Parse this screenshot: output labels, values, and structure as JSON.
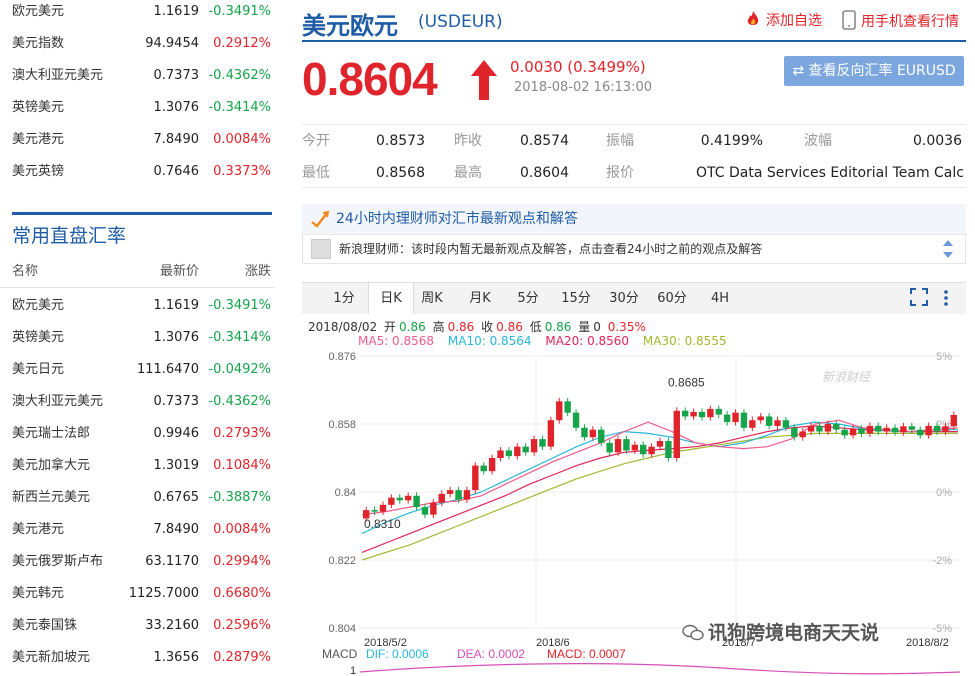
{
  "top_list": [
    {
      "name": "欧元美元",
      "price": "1.1619",
      "change": "-0.3491%",
      "dir": "dn"
    },
    {
      "name": "美元指数",
      "price": "94.9454",
      "change": "0.2912%",
      "dir": "up"
    },
    {
      "name": "澳大利亚元美元",
      "price": "0.7373",
      "change": "-0.4362%",
      "dir": "dn"
    },
    {
      "name": "英镑美元",
      "price": "1.3076",
      "change": "-0.3414%",
      "dir": "dn"
    },
    {
      "name": "美元港元",
      "price": "7.8490",
      "change": "0.0084%",
      "dir": "up"
    },
    {
      "name": "美元英镑",
      "price": "0.7646",
      "change": "0.3373%",
      "dir": "up"
    }
  ],
  "common": {
    "title": "常用直盘汇率",
    "head_name": "名称",
    "head_price": "最新价",
    "head_change": "涨跌",
    "rows": [
      {
        "name": "欧元美元",
        "price": "1.1619",
        "change": "-0.3491%",
        "dir": "dn"
      },
      {
        "name": "英镑美元",
        "price": "1.3076",
        "change": "-0.3414%",
        "dir": "dn"
      },
      {
        "name": "美元日元",
        "price": "111.6470",
        "change": "-0.0492%",
        "dir": "dn"
      },
      {
        "name": "澳大利亚元美元",
        "price": "0.7373",
        "change": "-0.4362%",
        "dir": "dn"
      },
      {
        "name": "美元瑞士法郎",
        "price": "0.9946",
        "change": "0.2793%",
        "dir": "up"
      },
      {
        "name": "美元加拿大元",
        "price": "1.3019",
        "change": "0.1084%",
        "dir": "up"
      },
      {
        "name": "新西兰元美元",
        "price": "0.6765",
        "change": "-0.3887%",
        "dir": "dn"
      },
      {
        "name": "美元港元",
        "price": "7.8490",
        "change": "0.0084%",
        "dir": "up"
      },
      {
        "name": "美元俄罗斯卢布",
        "price": "63.1170",
        "change": "0.2994%",
        "dir": "up"
      },
      {
        "name": "美元韩元",
        "price": "1125.7000",
        "change": "0.6680%",
        "dir": "up"
      },
      {
        "name": "美元泰国铢",
        "price": "33.2160",
        "change": "0.2596%",
        "dir": "up"
      },
      {
        "name": "美元新加坡元",
        "price": "1.3656",
        "change": "0.2879%",
        "dir": "up"
      }
    ]
  },
  "header": {
    "pair_name": "美元欧元",
    "pair_code": "(USDEUR)",
    "add_fav": "添加自选",
    "mobile": "用手机查看行情"
  },
  "quote": {
    "price": "0.8604",
    "change": "0.0030 (0.3499%)",
    "time": "2018-08-02 16:13:00",
    "reverse_btn": "⇄ 查看反向汇率 EURUSD"
  },
  "stats": {
    "open_label": "今开",
    "open": "0.8573",
    "prev_label": "昨收",
    "prev": "0.8574",
    "amp_label": "振幅",
    "amp": "0.4199%",
    "vol_label": "波幅",
    "vol": "0.0036",
    "low_label": "最低",
    "low": "0.8568",
    "high_label": "最高",
    "high": "0.8604",
    "quote_label": "报价",
    "quote": "OTC Data Services Editorial Team Calc..."
  },
  "advisor": {
    "title": "24小时内理财师对汇市最新观点和解答",
    "message": "新浪理财师：该时段内暂无最新观点及解答，点击查看24小时之前的观点及解答"
  },
  "tabs": [
    "1分",
    "日K",
    "周K",
    "月K",
    "5分",
    "15分",
    "30分",
    "60分",
    "4H"
  ],
  "active_tab": 1,
  "ohlc": {
    "date": "2018/08/02",
    "open_label": "开",
    "open": "0.86",
    "high_label": "高",
    "high": "0.86",
    "close_label": "收",
    "close": "0.86",
    "low_label": "低",
    "low": "0.86",
    "volume_label": "量",
    "volume": "0",
    "pct": "0.35%"
  },
  "ma": {
    "ma5": "MA5: 0.8568",
    "ma10": "MA10: 0.8564",
    "ma20": "MA20: 0.8560",
    "ma30": "MA30: 0.8555"
  },
  "macd": {
    "label": "MACD",
    "dif": "DIF: 0.0006",
    "dea": "DEA: 0.0002",
    "macd": "MACD: 0.0007"
  },
  "watermark": "新浪财经",
  "overlay_text": "讯狗跨境电商天天说",
  "colors": {
    "up": "#e0242b",
    "down": "#16a34a",
    "brand": "#1f5ca6",
    "ma5": "#ef5b8a",
    "ma10": "#29b6d8",
    "ma20": "#e0245a",
    "ma30": "#a2b832"
  },
  "chart_data": {
    "type": "candlestick",
    "y_ticks": [
      "0.876",
      "0.858",
      "0.84",
      "0.822",
      "0.804"
    ],
    "y_pct_ticks": [
      "5%",
      "2%",
      "0%",
      "-2%",
      "-5%"
    ],
    "x_ticks": [
      "2018/5/2",
      "2018/6",
      "2018/7",
      "2018/8/2"
    ],
    "ylim": [
      0.804,
      0.876
    ],
    "annotations": [
      {
        "label": "0.8685",
        "value": 0.8685
      },
      {
        "label": "0.8310",
        "value": 0.831
      }
    ],
    "candles": [
      [
        0.833,
        0.8352
      ],
      [
        0.8352,
        0.8348
      ],
      [
        0.8348,
        0.8366
      ],
      [
        0.8366,
        0.8385
      ],
      [
        0.8385,
        0.8378
      ],
      [
        0.8378,
        0.839
      ],
      [
        0.839,
        0.836
      ],
      [
        0.836,
        0.834
      ],
      [
        0.834,
        0.8372
      ],
      [
        0.8372,
        0.8395
      ],
      [
        0.8395,
        0.8405
      ],
      [
        0.8405,
        0.838
      ],
      [
        0.838,
        0.8405
      ],
      [
        0.8405,
        0.847
      ],
      [
        0.847,
        0.8455
      ],
      [
        0.8455,
        0.849
      ],
      [
        0.849,
        0.851
      ],
      [
        0.851,
        0.8495
      ],
      [
        0.8495,
        0.852
      ],
      [
        0.852,
        0.8505
      ],
      [
        0.8505,
        0.854
      ],
      [
        0.854,
        0.852
      ],
      [
        0.852,
        0.859
      ],
      [
        0.859,
        0.864
      ],
      [
        0.864,
        0.861
      ],
      [
        0.861,
        0.857
      ],
      [
        0.857,
        0.8545
      ],
      [
        0.8545,
        0.8565
      ],
      [
        0.8565,
        0.853
      ],
      [
        0.853,
        0.8505
      ],
      [
        0.8505,
        0.854
      ],
      [
        0.854,
        0.851
      ],
      [
        0.851,
        0.8525
      ],
      [
        0.8525,
        0.85
      ],
      [
        0.85,
        0.852
      ],
      [
        0.852,
        0.8535
      ],
      [
        0.8535,
        0.849
      ],
      [
        0.849,
        0.8615
      ],
      [
        0.8615,
        0.86
      ],
      [
        0.86,
        0.8612
      ],
      [
        0.8612,
        0.8598
      ],
      [
        0.8598,
        0.862
      ],
      [
        0.862,
        0.8605
      ],
      [
        0.8605,
        0.8585
      ],
      [
        0.8585,
        0.861
      ],
      [
        0.861,
        0.857
      ],
      [
        0.857,
        0.859
      ],
      [
        0.859,
        0.86
      ],
      [
        0.86,
        0.8575
      ],
      [
        0.8575,
        0.859
      ],
      [
        0.859,
        0.857
      ],
      [
        0.857,
        0.8545
      ],
      [
        0.8545,
        0.856
      ],
      [
        0.856,
        0.8575
      ],
      [
        0.8575,
        0.856
      ],
      [
        0.856,
        0.858
      ],
      [
        0.858,
        0.8565
      ],
      [
        0.8565,
        0.855
      ],
      [
        0.855,
        0.8568
      ],
      [
        0.8568,
        0.8555
      ],
      [
        0.8555,
        0.8575
      ],
      [
        0.8575,
        0.856
      ],
      [
        0.856,
        0.857
      ],
      [
        0.857,
        0.8558
      ],
      [
        0.8558,
        0.8574
      ],
      [
        0.8574,
        0.8565
      ],
      [
        0.8565,
        0.855
      ],
      [
        0.855,
        0.8575
      ],
      [
        0.8575,
        0.856
      ],
      [
        0.856,
        0.8574
      ],
      [
        0.8574,
        0.8604
      ]
    ],
    "ma5": [
      0.834,
      0.8348,
      0.836,
      0.8372,
      0.8376,
      0.839,
      0.842,
      0.845,
      0.848,
      0.8505,
      0.853,
      0.856,
      0.8585,
      0.856,
      0.853,
      0.852,
      0.8515,
      0.852,
      0.854,
      0.858,
      0.859,
      0.857,
      0.8565,
      0.856,
      0.8565,
      0.857
    ],
    "ma10": [
      0.829,
      0.832,
      0.8345,
      0.8365,
      0.838,
      0.84,
      0.843,
      0.846,
      0.849,
      0.852,
      0.8545,
      0.856,
      0.8555,
      0.8545,
      0.853,
      0.852,
      0.853,
      0.855,
      0.8575,
      0.8585,
      0.858,
      0.8568,
      0.8562,
      0.856,
      0.8565,
      0.8565
    ],
    "ma20": [
      0.824,
      0.8265,
      0.829,
      0.8315,
      0.834,
      0.8365,
      0.839,
      0.842,
      0.8445,
      0.847,
      0.849,
      0.8505,
      0.851,
      0.8515,
      0.852,
      0.853,
      0.8545,
      0.856,
      0.857,
      0.8575,
      0.857,
      0.8565,
      0.8562,
      0.856,
      0.856,
      0.856
    ],
    "ma30": [
      0.822,
      0.824,
      0.826,
      0.8285,
      0.831,
      0.8335,
      0.836,
      0.8385,
      0.841,
      0.8435,
      0.8455,
      0.8475,
      0.849,
      0.8505,
      0.8515,
      0.8525,
      0.8535,
      0.8545,
      0.855,
      0.8555,
      0.8555,
      0.8555,
      0.8555,
      0.8555,
      0.8555,
      0.8555
    ]
  }
}
